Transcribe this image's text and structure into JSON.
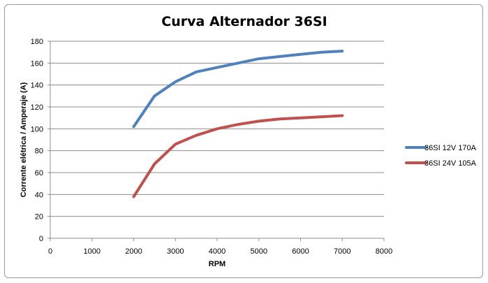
{
  "chart_data": {
    "type": "line",
    "title": "Curva Alternador 36SI",
    "xlabel": "RPM",
    "ylabel": "Corrente elétrica /  Amperaje (A)",
    "xlim": [
      0,
      8000
    ],
    "ylim": [
      0,
      180
    ],
    "x_ticks": [
      0,
      1000,
      2000,
      3000,
      4000,
      5000,
      6000,
      7000,
      8000
    ],
    "y_ticks": [
      0,
      20,
      40,
      60,
      80,
      100,
      120,
      140,
      160,
      180
    ],
    "grid": "horizontal",
    "legend_position": "right",
    "series": [
      {
        "name": "36SI 12V 170A",
        "color": "#4F81BD",
        "x": [
          2000,
          2500,
          3000,
          3500,
          4000,
          4500,
          5000,
          5500,
          6000,
          6500,
          7000
        ],
        "y": [
          102,
          130,
          143,
          152,
          156,
          160,
          164,
          166,
          168,
          170,
          171
        ]
      },
      {
        "name": "36SI 24V 105A",
        "color": "#C0504D",
        "x": [
          2000,
          2500,
          3000,
          3500,
          4000,
          4500,
          5000,
          5500,
          6000,
          6500,
          7000
        ],
        "y": [
          38,
          68,
          86,
          94,
          100,
          104,
          107,
          109,
          110,
          111,
          112
        ]
      }
    ]
  }
}
